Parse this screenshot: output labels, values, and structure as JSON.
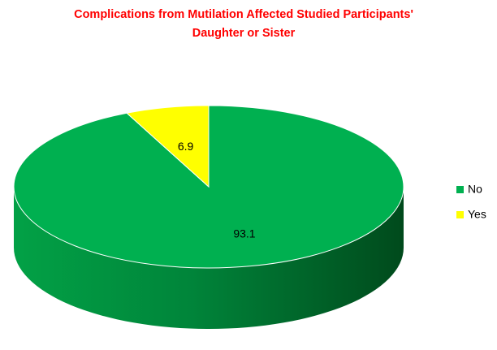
{
  "chart_data": {
    "type": "pie",
    "title": [
      "Complications from Mutilation Affected Studied Participants'",
      "Daughter or Sister"
    ],
    "categories": [
      "No",
      "Yes"
    ],
    "values": [
      93.1,
      6.9
    ],
    "colors": [
      "#00b050",
      "#ffff00"
    ],
    "legend": "right"
  }
}
